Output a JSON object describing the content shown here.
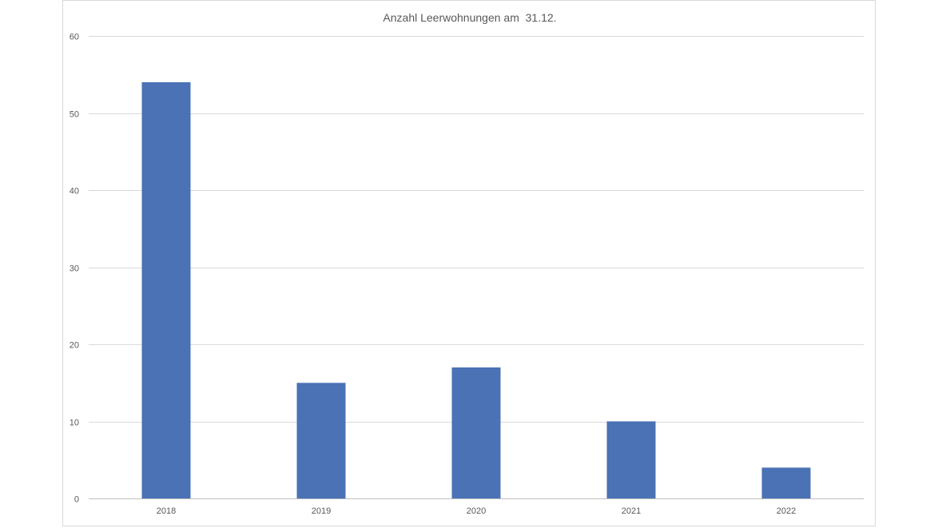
{
  "chart_data": {
    "type": "bar",
    "title": "Anzahl Leerwohnungen am  31.12.",
    "categories": [
      "2018",
      "2019",
      "2020",
      "2021",
      "2022"
    ],
    "values": [
      54,
      15,
      17,
      10,
      4
    ],
    "ylim": [
      0,
      60
    ],
    "yticks": [
      0,
      10,
      20,
      30,
      40,
      50,
      60
    ],
    "grid": true,
    "legend": "none",
    "xlabel": "",
    "ylabel": "",
    "colors": {
      "bar": "#4a72b5",
      "gridline": "#d9d9d9",
      "axis_line": "#bfbfbf"
    }
  }
}
